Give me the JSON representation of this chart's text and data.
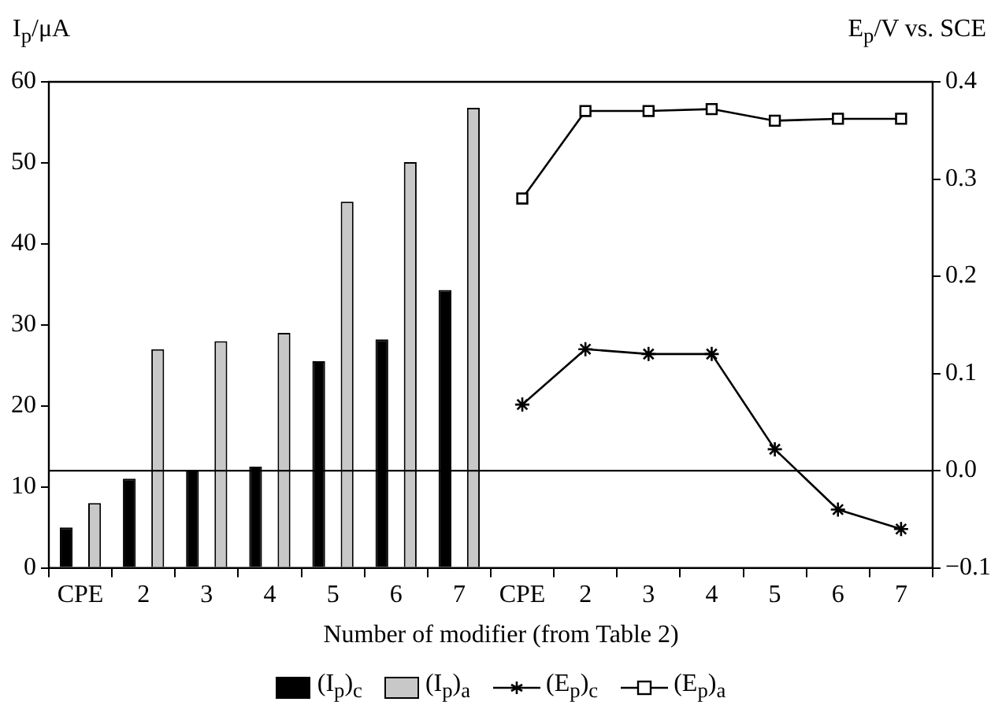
{
  "chart_data": {
    "type": "bar",
    "xlabel": "Number of modifier (from Table 2)",
    "ylabel": "I$_{p}$/μA",
    "y2label": "E$_{p}$/V vs. SCE",
    "categories": [
      "CPE",
      "2",
      "3",
      "4",
      "5",
      "6",
      "7",
      "CPE",
      "2",
      "3",
      "4",
      "5",
      "6",
      "7"
    ],
    "series": [
      {
        "name": "(I$_{p}$)$_{c}$",
        "color": "#000000",
        "values": [
          5.0,
          11,
          12,
          12.5,
          25.5,
          28.2,
          34.3,
          null,
          null,
          null,
          null,
          null,
          null,
          null
        ]
      },
      {
        "name": "(I$_{p}$)$_{a}$",
        "color": "#c8c8c8",
        "values": [
          8,
          27,
          28,
          29,
          45.2,
          50.1,
          56.8,
          null,
          null,
          null,
          null,
          null,
          null,
          null
        ]
      },
      {
        "name": "(E$_{p}$)$_{c}$",
        "color": "#000000",
        "type": "line",
        "axis": "y2",
        "marker": "cross",
        "values": [
          null,
          null,
          null,
          null,
          null,
          null,
          null,
          0.068,
          0.125,
          0.12,
          0.12,
          0.022,
          -0.04,
          -0.06
        ]
      },
      {
        "name": "(E$_{p}$)$_{a}$",
        "color": "#000000",
        "type": "line",
        "axis": "y2",
        "marker": "square",
        "values": [
          null,
          null,
          null,
          null,
          null,
          null,
          null,
          0.28,
          0.37,
          0.37,
          0.372,
          0.36,
          0.362,
          0.362
        ]
      }
    ],
    "ylim": [
      0,
      60
    ],
    "yticks": [
      0,
      10,
      20,
      30,
      40,
      50,
      60
    ],
    "y2lim": [
      -0.1,
      0.4
    ],
    "y2ticks": [
      {
        "value": -0.1,
        "label": "−0.1"
      },
      {
        "value": 0,
        "label": "0.0"
      },
      {
        "value": 0.1,
        "label": "0.1"
      },
      {
        "value": 0.2,
        "label": "0.2"
      },
      {
        "value": 0.3,
        "label": "0.3"
      },
      {
        "value": 0.4,
        "label": "0.4"
      }
    ],
    "ref_lines": [
      {
        "axis": "y2",
        "value": 0,
        "color": "#000000"
      }
    ],
    "grid": false,
    "legend": "bottom"
  }
}
